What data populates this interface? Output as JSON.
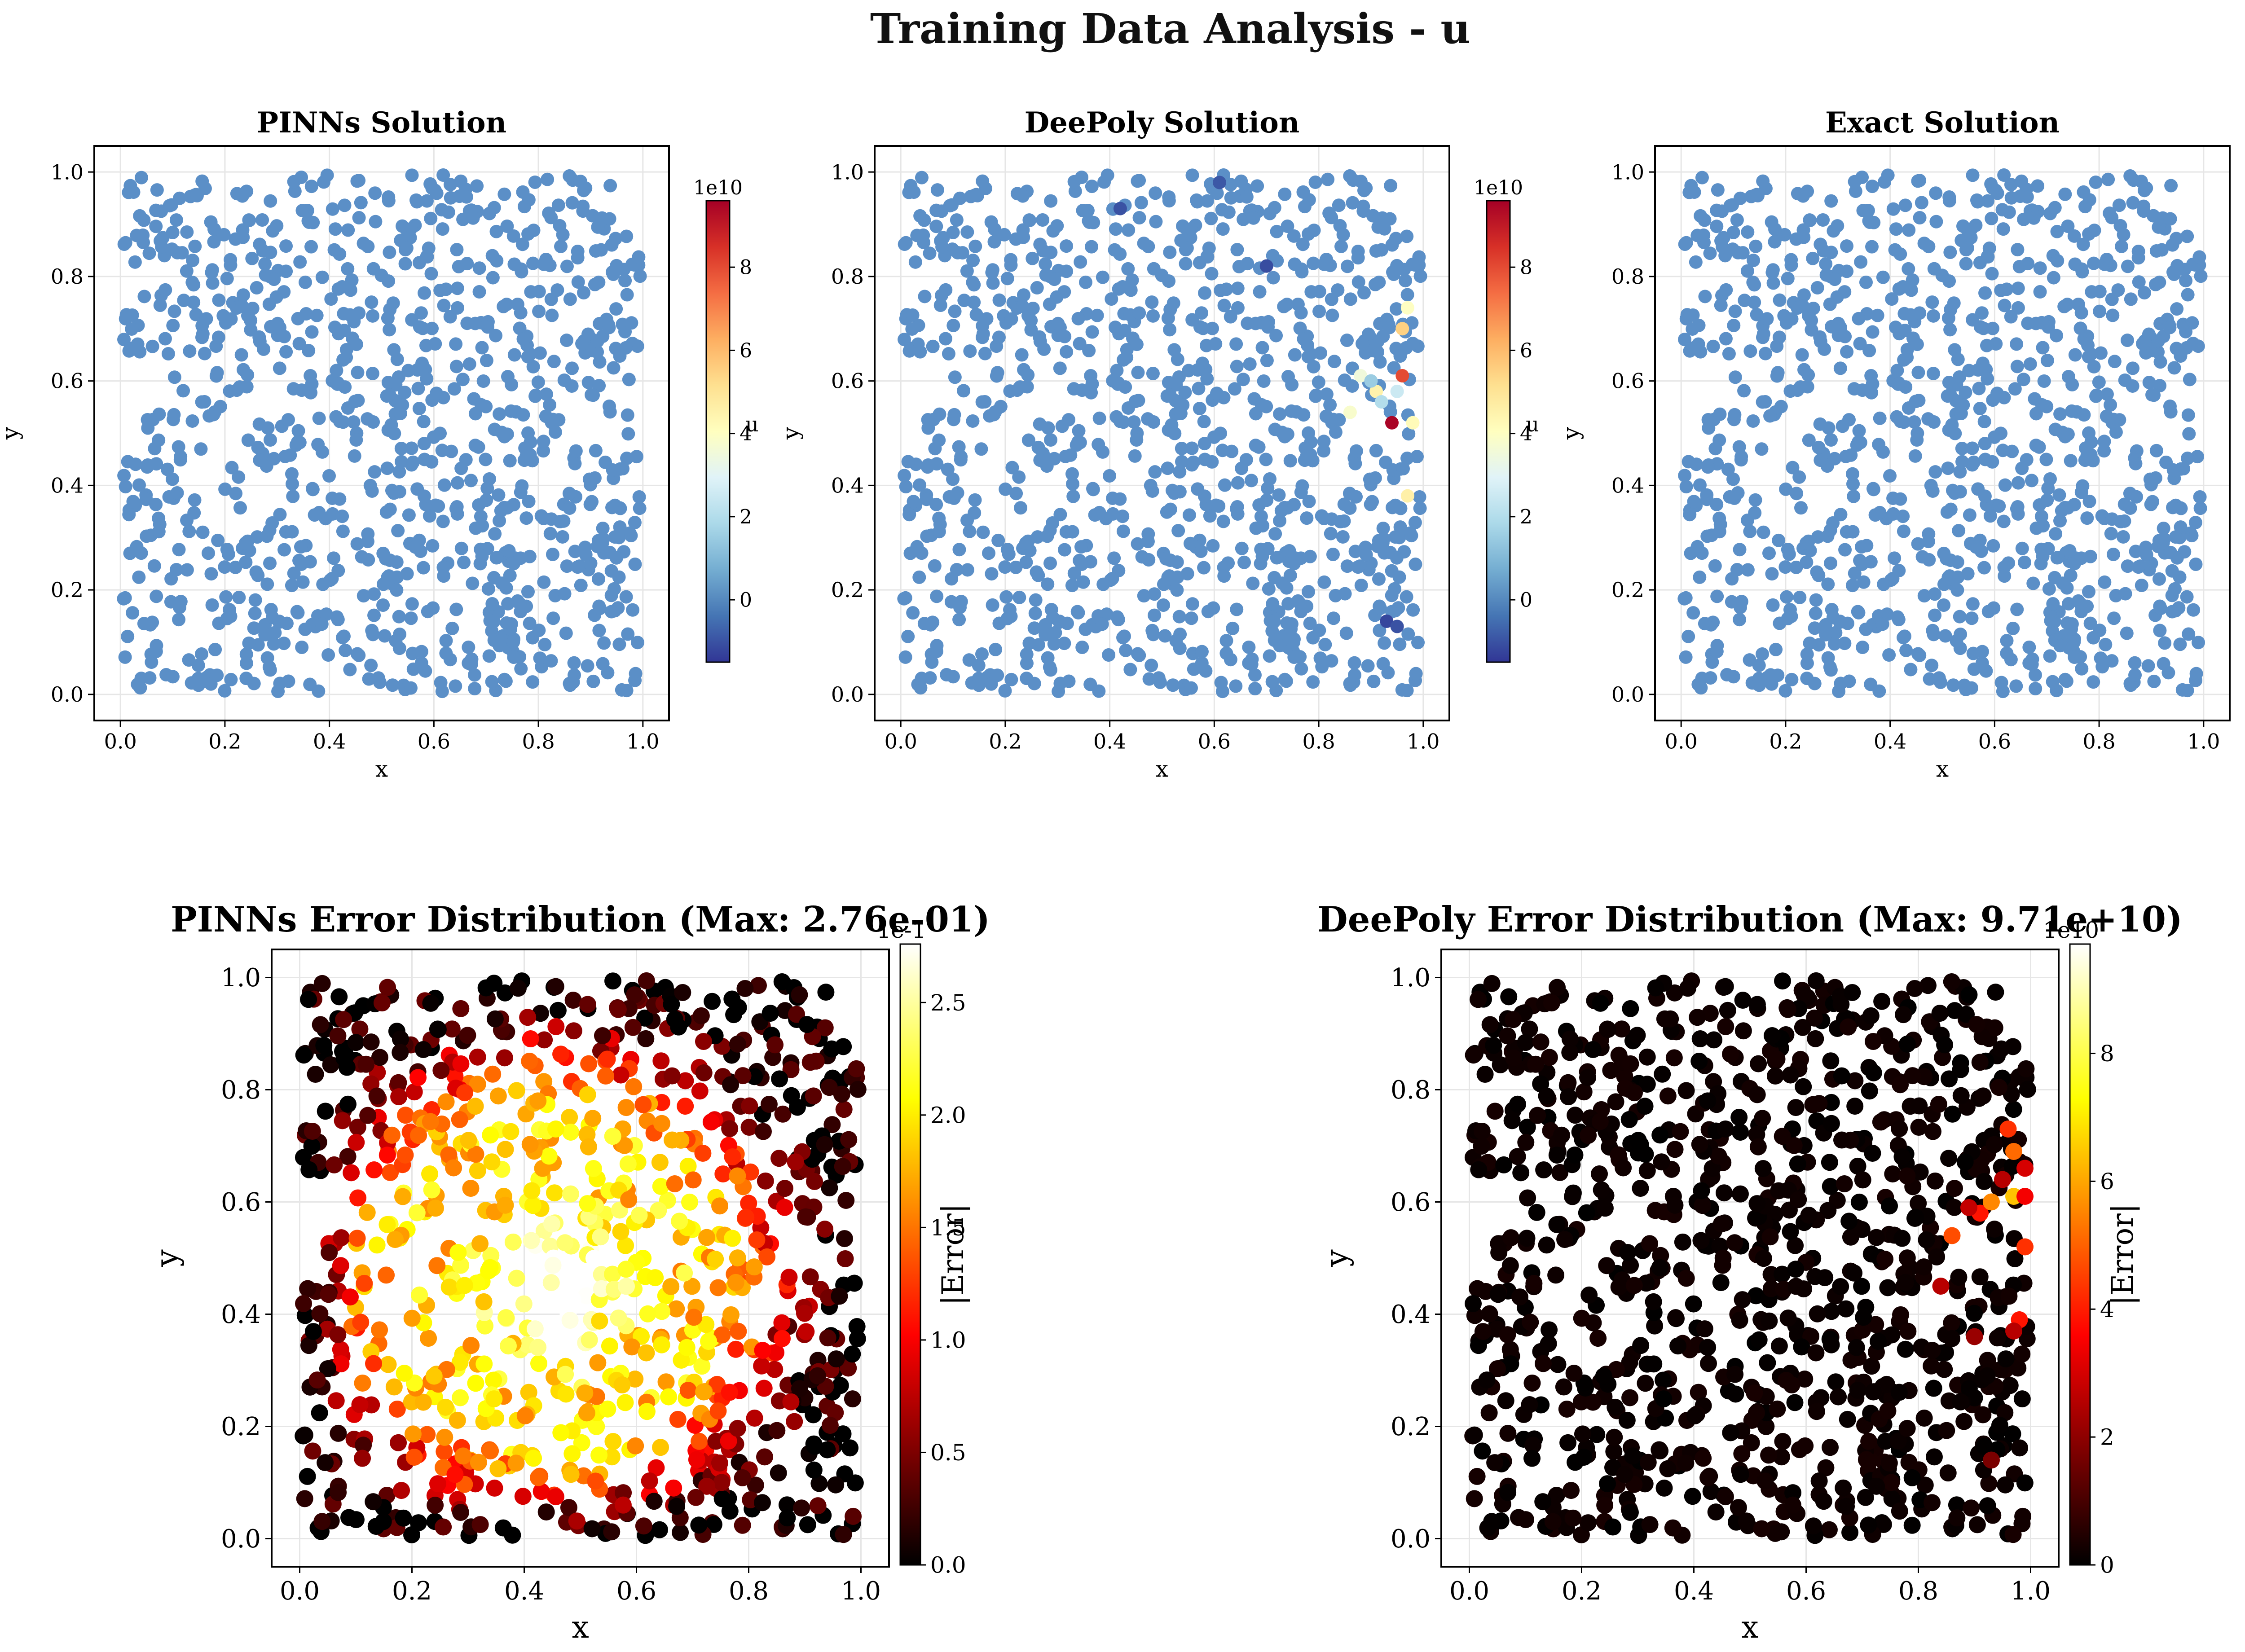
{
  "figure": {
    "suptitle": "Training Data Analysis - u"
  },
  "chart_data": [
    {
      "id": "pinns_solution",
      "type": "scatter",
      "title": "PINNs Solution",
      "xlabel": "x",
      "ylabel": "y",
      "xlim": [
        -0.05,
        1.05
      ],
      "ylim": [
        -0.05,
        1.05
      ],
      "xticks": [
        "0.0",
        "0.2",
        "0.4",
        "0.6",
        "0.8",
        "1.0"
      ],
      "yticks": [
        "0.0",
        "0.2",
        "0.4",
        "0.6",
        "0.8",
        "1.0"
      ],
      "grid": true,
      "colormap": "RdYlBu_r",
      "colorbar": {
        "label": "u",
        "range": [
          -1.5,
          9.6
        ],
        "ticks": [
          "0",
          "2",
          "4",
          "6",
          "8"
        ],
        "offset_text": "1e10"
      },
      "series_summary": "~1000 collocation points uniformly distributed over unit square; all values near 0 (uniform blue #5b8fc7)",
      "marker_color": "#5b8fc7"
    },
    {
      "id": "deepoly_solution",
      "type": "scatter",
      "title": "DeePoly Solution",
      "xlabel": "x",
      "ylabel": "y",
      "xlim": [
        -0.05,
        1.05
      ],
      "ylim": [
        -0.05,
        1.05
      ],
      "xticks": [
        "0.0",
        "0.2",
        "0.4",
        "0.6",
        "0.8",
        "1.0"
      ],
      "yticks": [
        "0.0",
        "0.2",
        "0.4",
        "0.6",
        "0.8",
        "1.0"
      ],
      "grid": true,
      "colormap": "RdYlBu_r",
      "colorbar": {
        "label": "u",
        "range": [
          -1.5,
          9.6
        ],
        "ticks": [
          "0",
          "2",
          "4",
          "6",
          "8"
        ],
        "offset_text": "1e10"
      },
      "marker_color": "#5b8fc7",
      "highlight_points": [
        {
          "x": 0.94,
          "y": 0.52,
          "value": 9.5
        },
        {
          "x": 0.96,
          "y": 0.7,
          "value": 5.5
        },
        {
          "x": 0.96,
          "y": 0.61,
          "value": 8.0
        },
        {
          "x": 0.91,
          "y": 0.58,
          "value": 4.5
        },
        {
          "x": 0.88,
          "y": 0.61,
          "value": 3.5
        },
        {
          "x": 0.98,
          "y": 0.52,
          "value": 4.2
        },
        {
          "x": 0.97,
          "y": 0.74,
          "value": 4.0
        },
        {
          "x": 0.97,
          "y": 0.38,
          "value": 4.6
        },
        {
          "x": 0.86,
          "y": 0.54,
          "value": 3.8
        },
        {
          "x": 0.92,
          "y": 0.56,
          "value": 2.0
        },
        {
          "x": 0.9,
          "y": 0.6,
          "value": 1.5
        },
        {
          "x": 0.95,
          "y": 0.58,
          "value": 2.5
        },
        {
          "x": 0.93,
          "y": 0.14,
          "value": -1.2
        },
        {
          "x": 0.95,
          "y": 0.13,
          "value": -1.0
        },
        {
          "x": 0.7,
          "y": 0.82,
          "value": -1.1
        },
        {
          "x": 0.42,
          "y": 0.93,
          "value": -1.0
        },
        {
          "x": 0.61,
          "y": 0.98,
          "value": -0.9
        }
      ]
    },
    {
      "id": "exact_solution",
      "type": "scatter",
      "title": "Exact Solution",
      "xlabel": "x",
      "ylabel": "y",
      "xlim": [
        -0.05,
        1.05
      ],
      "ylim": [
        -0.05,
        1.05
      ],
      "xticks": [
        "0.0",
        "0.2",
        "0.4",
        "0.6",
        "0.8",
        "1.0"
      ],
      "yticks": [
        "0.0",
        "0.2",
        "0.4",
        "0.6",
        "0.8",
        "1.0"
      ],
      "grid": true,
      "colormap": "RdYlBu_r",
      "colorbar": {
        "label": "u",
        "range": [
          -1.5,
          9.6
        ],
        "ticks": [
          "0",
          "2",
          "4",
          "6",
          "8"
        ],
        "offset_text": "1e10"
      },
      "marker_color": "#5b8fc7"
    },
    {
      "id": "pinns_error",
      "type": "scatter",
      "title": "PINNs Error Distribution (Max: 2.76e-01)",
      "xlabel": "x",
      "ylabel": "y",
      "xlim": [
        -0.05,
        1.05
      ],
      "ylim": [
        -0.05,
        1.05
      ],
      "xticks": [
        "0.0",
        "0.2",
        "0.4",
        "0.6",
        "0.8",
        "1.0"
      ],
      "yticks": [
        "0.0",
        "0.2",
        "0.4",
        "0.6",
        "0.8",
        "1.0"
      ],
      "grid": true,
      "colormap": "hot",
      "colorbar": {
        "label": "|Error|",
        "range": [
          0,
          2.76
        ],
        "ticks": [
          "0.0",
          "0.5",
          "1.0",
          "1.5",
          "2.0",
          "2.5"
        ],
        "offset_text": "1e-1"
      },
      "error_model": "max 2.76e-01 at center ring around (0.45,0.45); decays toward boundaries to ~0"
    },
    {
      "id": "deepoly_error",
      "type": "scatter",
      "title": "DeePoly Error Distribution (Max: 9.71e+10)",
      "xlabel": "x",
      "ylabel": "y",
      "xlim": [
        -0.05,
        1.05
      ],
      "ylim": [
        -0.05,
        1.05
      ],
      "xticks": [
        "0.0",
        "0.2",
        "0.4",
        "0.6",
        "0.8",
        "1.0"
      ],
      "yticks": [
        "0.0",
        "0.2",
        "0.4",
        "0.6",
        "0.8",
        "1.0"
      ],
      "grid": true,
      "colormap": "hot",
      "colorbar": {
        "label": "|Error|",
        "range": [
          0,
          9.71
        ],
        "ticks": [
          "0",
          "2",
          "4",
          "6",
          "8"
        ],
        "offset_text": "1e10"
      },
      "highlight_points": [
        {
          "x": 0.97,
          "y": 0.61,
          "value": 7.5
        },
        {
          "x": 0.99,
          "y": 0.61,
          "value": 4.0
        },
        {
          "x": 0.96,
          "y": 0.73,
          "value": 5.0
        },
        {
          "x": 0.97,
          "y": 0.69,
          "value": 6.0
        },
        {
          "x": 0.99,
          "y": 0.66,
          "value": 3.5
        },
        {
          "x": 0.95,
          "y": 0.64,
          "value": 3.0
        },
        {
          "x": 0.91,
          "y": 0.58,
          "value": 4.5
        },
        {
          "x": 0.93,
          "y": 0.6,
          "value": 6.5
        },
        {
          "x": 0.86,
          "y": 0.54,
          "value": 5.5
        },
        {
          "x": 0.89,
          "y": 0.59,
          "value": 3.2
        },
        {
          "x": 0.99,
          "y": 0.52,
          "value": 5.0
        },
        {
          "x": 0.84,
          "y": 0.45,
          "value": 3.0
        },
        {
          "x": 0.98,
          "y": 0.39,
          "value": 4.5
        },
        {
          "x": 0.97,
          "y": 0.37,
          "value": 3.0
        },
        {
          "x": 0.9,
          "y": 0.36,
          "value": 2.5
        },
        {
          "x": 0.93,
          "y": 0.14,
          "value": 2.0
        }
      ]
    }
  ]
}
